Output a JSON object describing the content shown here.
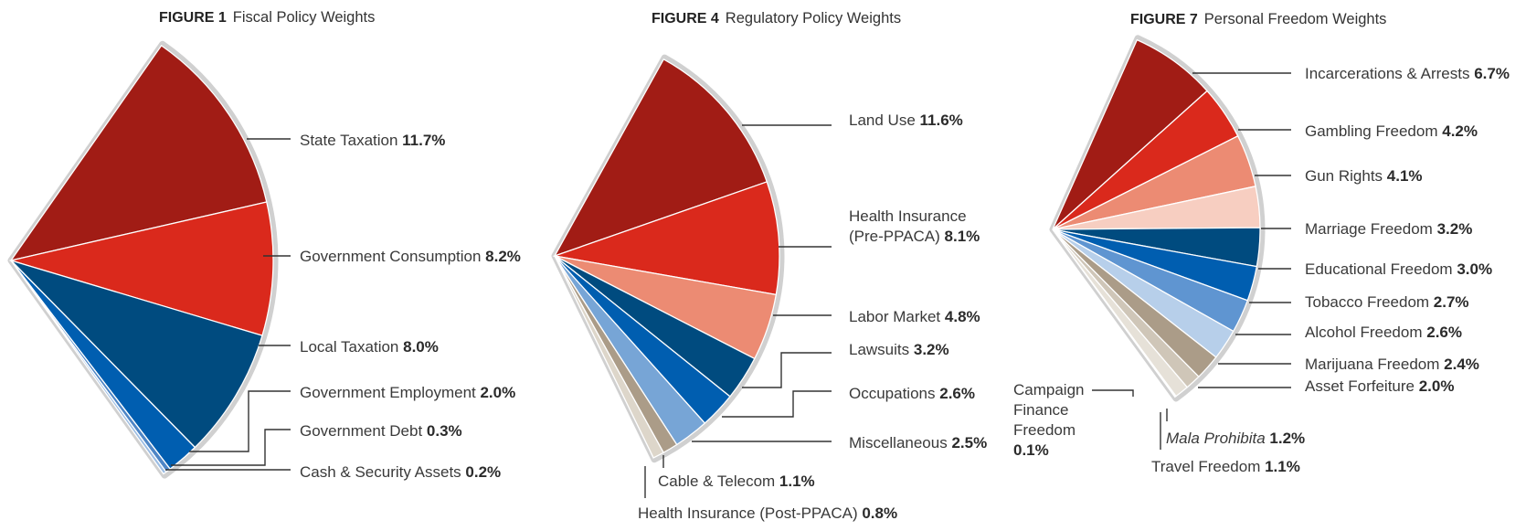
{
  "chart_data": [
    {
      "type": "pie",
      "figure_label": "FIGURE 1",
      "title": "Fiscal Policy Weights",
      "slices": [
        {
          "name": "State Taxation",
          "value": 11.7,
          "color": "#a11c15"
        },
        {
          "name": "Government Consumption",
          "value": 8.2,
          "color": "#da291c"
        },
        {
          "name": "Local Taxation",
          "value": 8.0,
          "color": "#004b7f"
        },
        {
          "name": "Government Employment",
          "value": 2.0,
          "color": "#005eb0"
        },
        {
          "name": "Government Debt",
          "value": 0.3,
          "color": "#4e86c6"
        },
        {
          "name": "Cash & Security Assets",
          "value": 0.2,
          "color": "#9cbde3"
        }
      ]
    },
    {
      "type": "pie",
      "figure_label": "FIGURE 4",
      "title": "Regulatory Policy Weights",
      "slices": [
        {
          "name": "Land Use",
          "value": 11.6,
          "color": "#a11c15"
        },
        {
          "name": "Health Insurance (Pre-PPACA)",
          "value": 8.1,
          "color": "#da291c"
        },
        {
          "name": "Labor Market",
          "value": 4.8,
          "color": "#ec8b73"
        },
        {
          "name": "Lawsuits",
          "value": 3.2,
          "color": "#004b7f"
        },
        {
          "name": "Occupations",
          "value": 2.6,
          "color": "#005eb0"
        },
        {
          "name": "Miscellaneous",
          "value": 2.5,
          "color": "#77a5d6"
        },
        {
          "name": "Cable & Telecom",
          "value": 1.1,
          "color": "#ab9c88"
        },
        {
          "name": "Health Insurance (Post-PPACA)",
          "value": 0.8,
          "color": "#ddd6ca"
        }
      ]
    },
    {
      "type": "pie",
      "figure_label": "FIGURE 7",
      "title": "Personal Freedom Weights",
      "slices": [
        {
          "name": "Incarcerations & Arrests",
          "value": 6.7,
          "color": "#a11c15"
        },
        {
          "name": "Gambling Freedom",
          "value": 4.2,
          "color": "#da291c"
        },
        {
          "name": "Gun Rights",
          "value": 4.1,
          "color": "#ec8b73"
        },
        {
          "name": "Marriage Freedom",
          "value": 3.2,
          "color": "#f7cec1"
        },
        {
          "name": "Educational Freedom",
          "value": 3.0,
          "color": "#004b7f"
        },
        {
          "name": "Tobacco Freedom",
          "value": 2.7,
          "color": "#005eb0"
        },
        {
          "name": "Alcohol Freedom",
          "value": 2.6,
          "color": "#5f95d1"
        },
        {
          "name": "Marijuana Freedom",
          "value": 2.4,
          "color": "#b7cfea"
        },
        {
          "name": "Asset Forfeiture",
          "value": 2.0,
          "color": "#ab9c88"
        },
        {
          "name": "Mala Prohibita",
          "value": 1.2,
          "color": "#cfc6b8"
        },
        {
          "name": "Travel Freedom",
          "value": 1.1,
          "color": "#e6e1d8"
        },
        {
          "name": "Campaign Finance Freedom",
          "value": 0.1,
          "color": "#f3f0ea"
        }
      ]
    }
  ]
}
